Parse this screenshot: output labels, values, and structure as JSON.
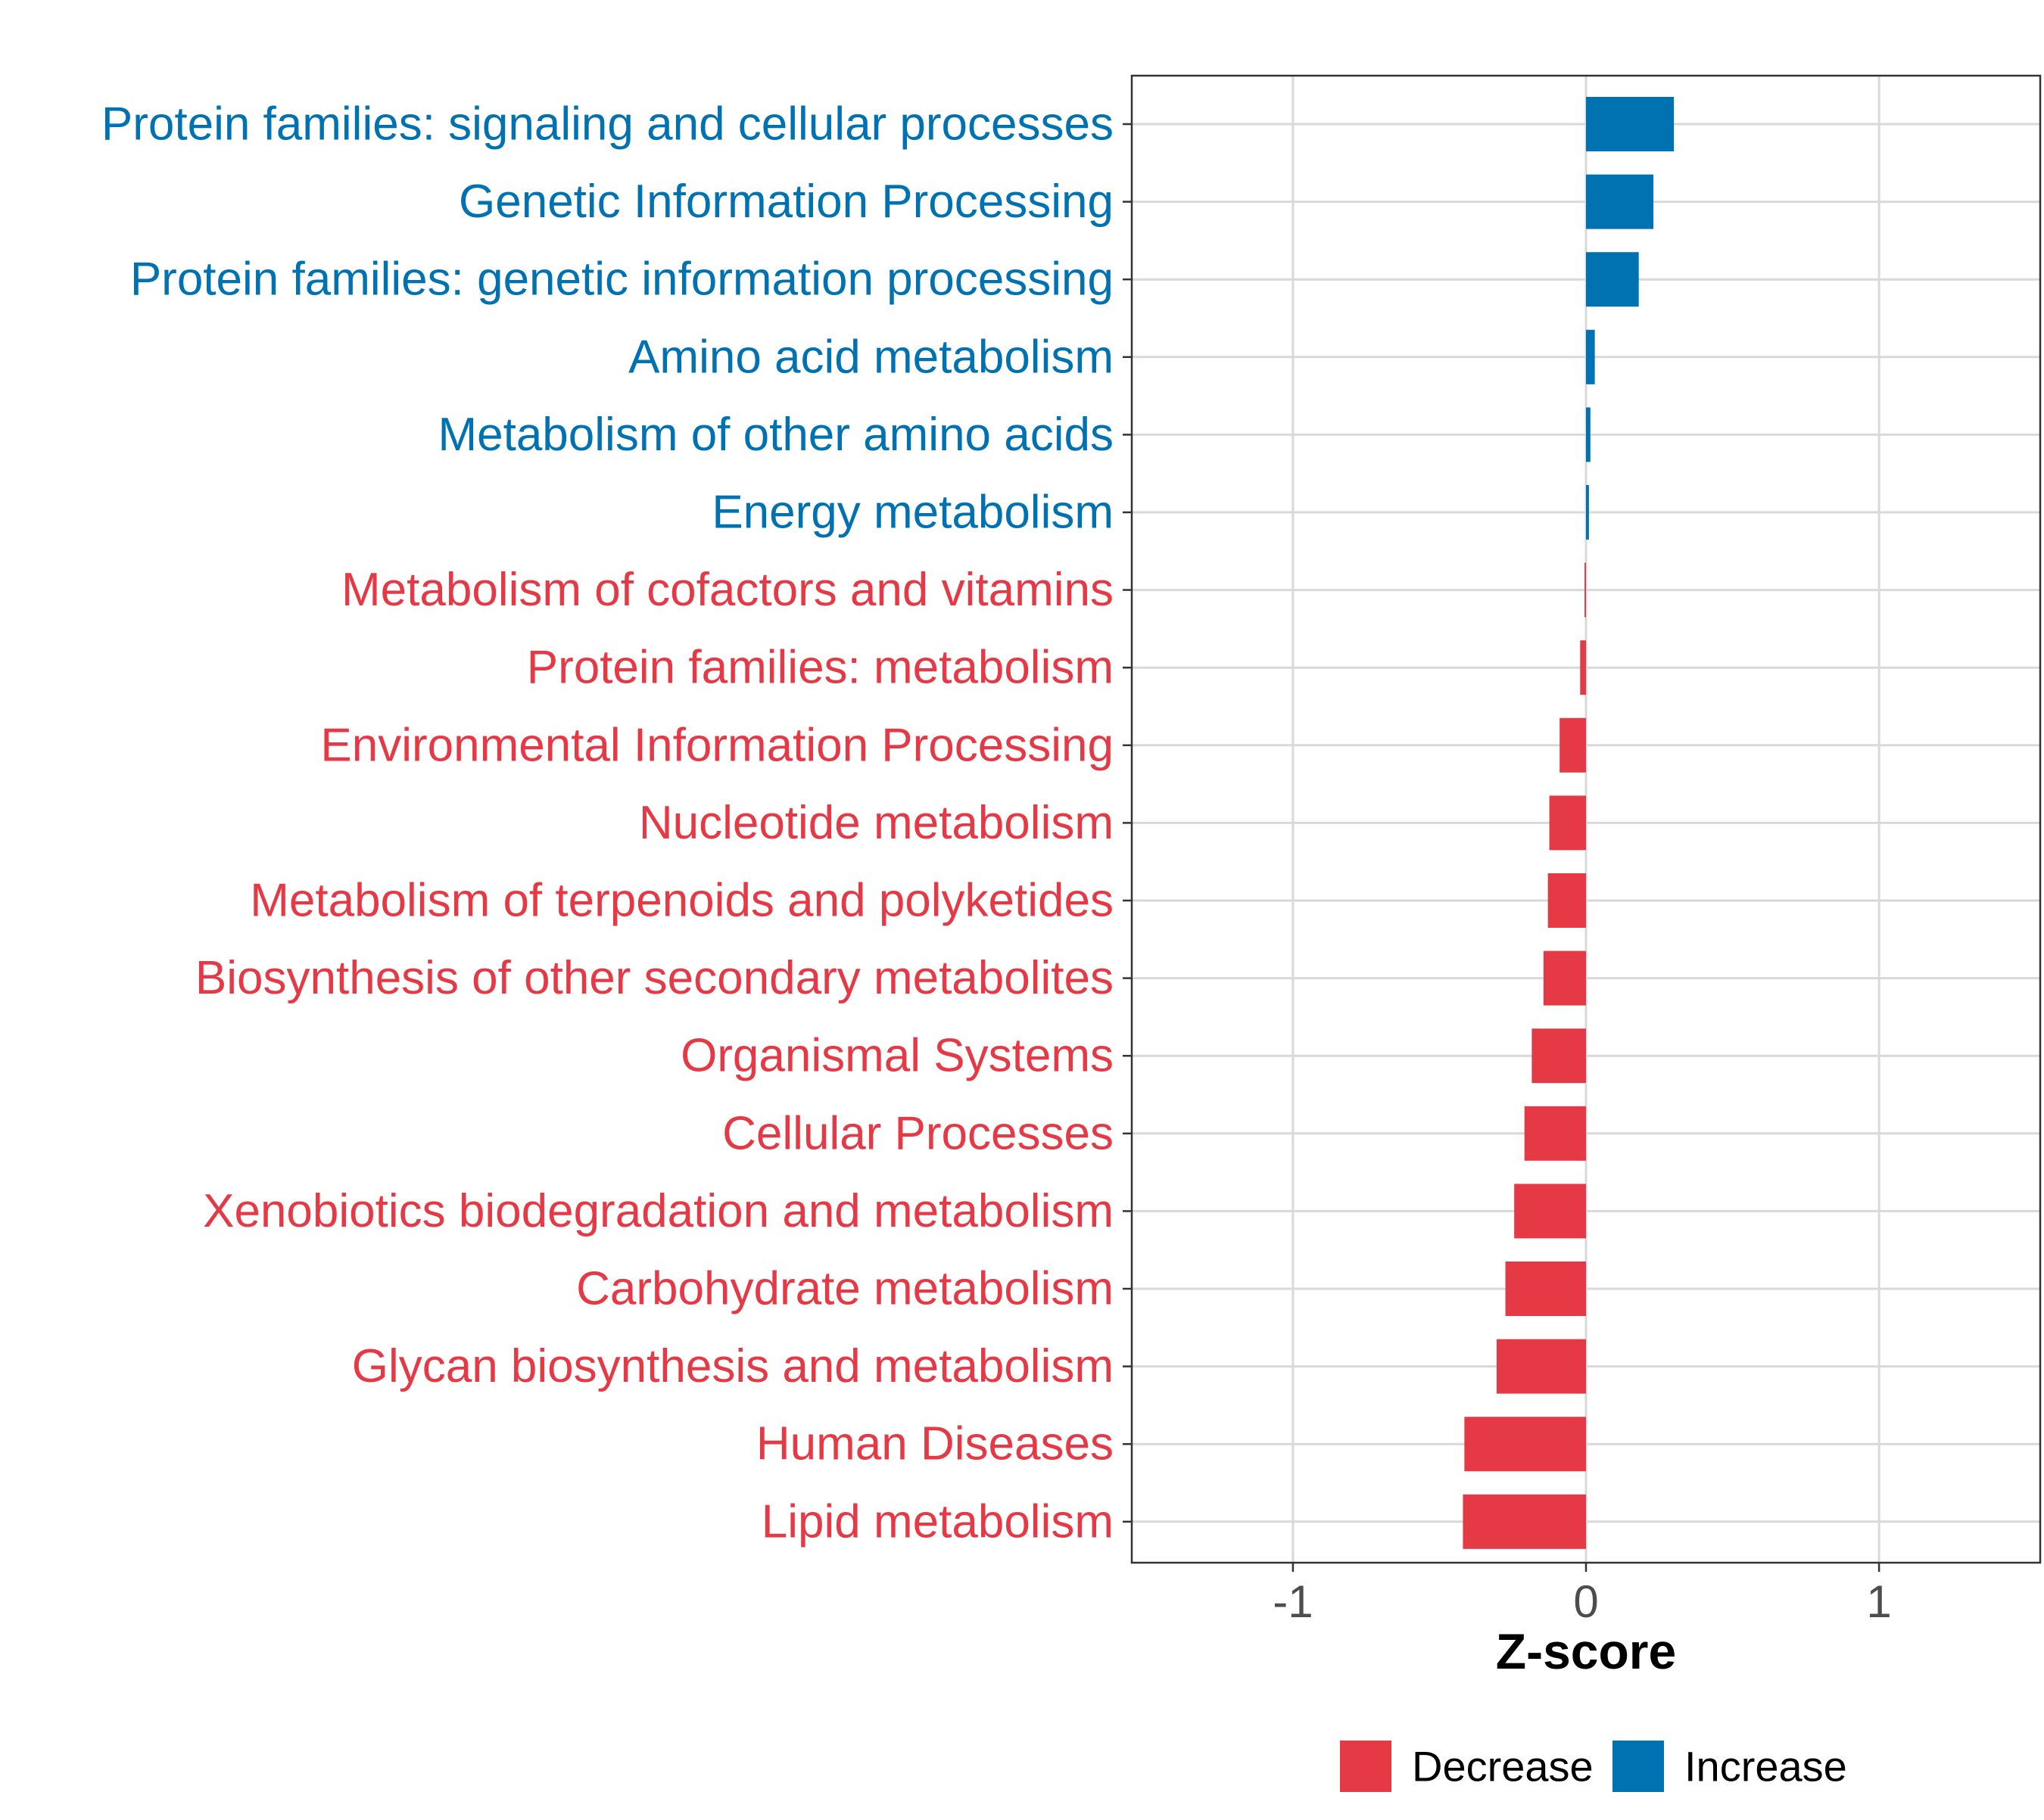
{
  "chart_data": {
    "type": "bar",
    "orientation": "horizontal",
    "title": "",
    "xlabel": "Z-score",
    "ylabel": "",
    "xlim": [
      -1.55,
      1.55
    ],
    "xticks": [
      -1,
      0,
      1
    ],
    "xtick_labels": [
      "-1",
      "0",
      "1"
    ],
    "grid": true,
    "legend_position": "bottom",
    "colors": {
      "Decrease": "#E63946",
      "Increase": "#0072B2"
    },
    "categories": [
      "Protein families: signaling and cellular processes",
      "Genetic Information Processing",
      "Protein families: genetic information processing",
      "Amino acid metabolism",
      "Metabolism of other amino acids",
      "Energy metabolism",
      "Metabolism of cofactors and vitamins",
      "Protein families: metabolism",
      "Environmental Information Processing",
      "Nucleotide metabolism",
      "Metabolism of terpenoids and polyketides",
      "Biosynthesis of other secondary metabolites",
      "Organismal Systems",
      "Cellular Processes",
      "Xenobiotics biodegradation and metabolism",
      "Carbohydrate metabolism",
      "Glycan biosynthesis and metabolism",
      "Human Diseases",
      "Lipid metabolism"
    ],
    "values": [
      0.3,
      0.23,
      0.18,
      0.03,
      0.015,
      0.01,
      -0.005,
      -0.02,
      -0.09,
      -0.125,
      -0.13,
      -0.145,
      -0.185,
      -0.21,
      -0.245,
      -0.275,
      -0.305,
      -0.415,
      -0.42
    ],
    "groups": [
      "Increase",
      "Increase",
      "Increase",
      "Increase",
      "Increase",
      "Increase",
      "Decrease",
      "Decrease",
      "Decrease",
      "Decrease",
      "Decrease",
      "Decrease",
      "Decrease",
      "Decrease",
      "Decrease",
      "Decrease",
      "Decrease",
      "Decrease",
      "Decrease"
    ],
    "legend": [
      "Decrease",
      "Increase"
    ]
  }
}
